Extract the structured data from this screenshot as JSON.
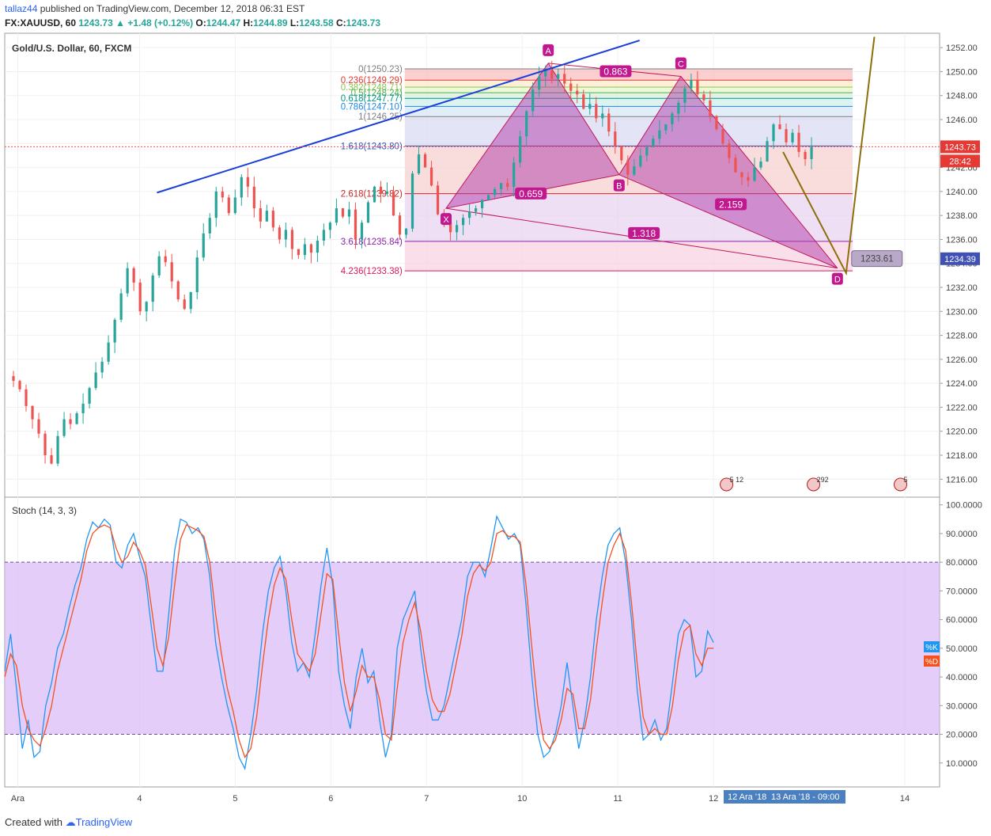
{
  "header": {
    "user": "tallaz44",
    "published": "published on TradingView.com, December 12, 2018 06:31 EST",
    "symbol": "FX:XAUUSD, 60",
    "last": "1243.73",
    "change": "+1.48 (+0.12%)",
    "o_label": "O:",
    "o": "1244.47",
    "h_label": "H:",
    "h": "1244.89",
    "l_label": "L:",
    "l": "1243.58",
    "c_label": "C:",
    "c": "1243.73"
  },
  "footer": {
    "created": "Created with",
    "brand": "TradingView"
  },
  "chart_data": [
    {
      "type": "candlestick",
      "title": "Gold/U.S. Dollar, 60, FXCM",
      "y_range": [
        1214.5,
        1253.2
      ],
      "y_ticks": [
        "1216.00",
        "1218.00",
        "1220.00",
        "1222.00",
        "1224.00",
        "1226.00",
        "1228.00",
        "1230.00",
        "1232.00",
        "1234.00",
        "1236.00",
        "1238.00",
        "1240.00",
        "1242.00",
        "1244.00",
        "1246.00",
        "1248.00",
        "1250.00",
        "1252.00"
      ],
      "x_ticks": [
        {
          "label": "Ara",
          "t": 3
        },
        {
          "label": "4",
          "t": 31
        },
        {
          "label": "5",
          "t": 53
        },
        {
          "label": "6",
          "t": 75
        },
        {
          "label": "7",
          "t": 97
        },
        {
          "label": "10",
          "t": 119
        },
        {
          "label": "11",
          "t": 141
        },
        {
          "label": "12",
          "t": 163
        },
        {
          "label": "14",
          "t": 207
        }
      ],
      "x_time_tags": [
        "12 Ara '18",
        "13 Ara '18 - 09:00"
      ],
      "price_tags": {
        "last": "1243.73",
        "countdown": "28:42",
        "target": "1234.39"
      },
      "closes": [
        1224.2,
        1223.5,
        1222.1,
        1221.0,
        1219.8,
        1218.0,
        1217.3,
        1219.6,
        1221.0,
        1220.6,
        1221.5,
        1222.3,
        1223.6,
        1224.9,
        1225.8,
        1227.4,
        1229.3,
        1231.5,
        1233.6,
        1232.4,
        1230.0,
        1230.8,
        1233.0,
        1234.6,
        1234.1,
        1232.5,
        1231.0,
        1230.2,
        1231.6,
        1234.5,
        1236.5,
        1237.8,
        1240.0,
        1239.5,
        1238.2,
        1239.5,
        1241.2,
        1240.4,
        1238.6,
        1237.5,
        1238.4,
        1237.0,
        1236.0,
        1236.8,
        1235.2,
        1234.7,
        1235.6,
        1234.9,
        1235.9,
        1236.8,
        1237.4,
        1238.6,
        1237.9,
        1238.5,
        1236.0,
        1237.4,
        1239.1,
        1240.4,
        1239.8,
        1240.0,
        1238.0,
        1236.4,
        1236.9,
        1241.5,
        1243.1,
        1242.0,
        1240.5,
        1238.1,
        1237.4,
        1236.6,
        1237.2,
        1237.8,
        1238.3,
        1238.6,
        1239.3,
        1239.7,
        1240.2,
        1240.7,
        1240.4,
        1242.4,
        1244.6,
        1246.7,
        1248.5,
        1249.6,
        1250.1,
        1249.4,
        1249.8,
        1249.0,
        1248.4,
        1248.1,
        1246.9,
        1247.3,
        1246.1,
        1246.5,
        1245.0,
        1243.8,
        1242.6,
        1241.4,
        1242.1,
        1243.0,
        1243.7,
        1244.4,
        1245.1,
        1245.6,
        1246.5,
        1247.4,
        1248.6,
        1249.3,
        1248.1,
        1247.6,
        1246.3,
        1245.2,
        1244.0,
        1242.8,
        1241.6,
        1241.2,
        1240.9,
        1242.0,
        1242.5,
        1244.2,
        1245.6,
        1245.2,
        1244.1,
        1244.9,
        1243.3,
        1242.7,
        1243.73
      ],
      "fib_levels": [
        {
          "label": "0(1250.23)",
          "value": 1250.23,
          "color": "#7e7e7e"
        },
        {
          "label": "0.236(1249.29)",
          "value": 1249.29,
          "color": "#e53935"
        },
        {
          "label": "0.382(1248.71)",
          "value": 1248.71,
          "color": "#8bc34a"
        },
        {
          "label": "0.5(1248.24)",
          "value": 1248.24,
          "color": "#4caf50"
        },
        {
          "label": "0.618(1247.77)",
          "value": 1247.77,
          "color": "#009688"
        },
        {
          "label": "0.786(1247.10)",
          "value": 1247.1,
          "color": "#1e88e5"
        },
        {
          "label": "1(1246.25)",
          "value": 1246.25,
          "color": "#7e7e7e"
        },
        {
          "label": "1.618(1243.80)",
          "value": 1243.8,
          "color": "#3f51b5"
        },
        {
          "label": "2.618(1239.82)",
          "value": 1239.82,
          "color": "#c62828"
        },
        {
          "label": "3.618(1235.84)",
          "value": 1235.84,
          "color": "#8e24aa"
        },
        {
          "label": "4.236(1233.38)",
          "value": 1233.38,
          "color": "#d81b60"
        }
      ],
      "harmonic_pattern": {
        "points": [
          {
            "label": "X",
            "t": 101.5,
            "price": 1238.6
          },
          {
            "label": "A",
            "t": 125,
            "price": 1250.7
          },
          {
            "label": "B",
            "t": 141.3,
            "price": 1241.4
          },
          {
            "label": "C",
            "t": 155.5,
            "price": 1249.6
          },
          {
            "label": "D",
            "t": 191.5,
            "price": 1233.61
          }
        ],
        "ratios": [
          {
            "label": "0.863",
            "t": 140.5,
            "price": 1250.0
          },
          {
            "label": "0.659",
            "t": 121,
            "price": 1239.8
          },
          {
            "label": "2.159",
            "t": 167,
            "price": 1238.9
          },
          {
            "label": "1.318",
            "t": 147,
            "price": 1236.5
          }
        ],
        "d_price_label": "1233.61"
      },
      "trendline": {
        "from": {
          "t": 35,
          "price": 1239.9
        },
        "to": {
          "t": 146,
          "price": 1252.6
        }
      },
      "forecast": {
        "path": [
          {
            "t": 179,
            "price": 1243.3
          },
          {
            "t": 193.5,
            "price": 1233.2
          },
          {
            "t": 200,
            "price": 1252.9
          }
        ]
      },
      "event_badges": [
        "5",
        "12",
        "292",
        "5"
      ]
    },
    {
      "type": "line",
      "title": "Stoch (14, 3, 3)",
      "y_range": [
        0,
        100
      ],
      "y_ticks": [
        "10.0000",
        "20.0000",
        "30.0000",
        "40.0000",
        "50.0000",
        "60.0000",
        "70.0000",
        "80.0000",
        "90.0000",
        "100.0000"
      ],
      "bands": [
        20,
        80
      ],
      "series": [
        {
          "name": "%K",
          "color": "#2196f3",
          "values": [
            42,
            55,
            36,
            15,
            25,
            12,
            14,
            30,
            38,
            50,
            55,
            64,
            72,
            78,
            88,
            94,
            92,
            95,
            93,
            80,
            78,
            86,
            90,
            82,
            75,
            58,
            42,
            42,
            62,
            84,
            95,
            94,
            90,
            92,
            88,
            75,
            52,
            40,
            30,
            22,
            12,
            8,
            20,
            35,
            55,
            70,
            78,
            82,
            70,
            52,
            42,
            45,
            40,
            55,
            72,
            85,
            72,
            42,
            30,
            22,
            40,
            50,
            38,
            42,
            25,
            12,
            20,
            50,
            60,
            65,
            70,
            50,
            35,
            25,
            25,
            30,
            40,
            50,
            60,
            75,
            80,
            80,
            75,
            85,
            96,
            92,
            88,
            90,
            86,
            65,
            40,
            20,
            12,
            14,
            20,
            30,
            45,
            30,
            15,
            25,
            40,
            60,
            75,
            86,
            90,
            92,
            80,
            60,
            35,
            18,
            20,
            25,
            18,
            22,
            38,
            55,
            60,
            58,
            40,
            42,
            56,
            52
          ]
        },
        {
          "name": "%D",
          "color": "#f4511e",
          "values": [
            40,
            48,
            44,
            30,
            22,
            18,
            16,
            22,
            30,
            42,
            50,
            58,
            66,
            74,
            84,
            90,
            92,
            93,
            92,
            85,
            80,
            82,
            87,
            84,
            79,
            65,
            50,
            44,
            54,
            72,
            88,
            93,
            92,
            91,
            89,
            80,
            62,
            48,
            36,
            28,
            18,
            12,
            15,
            26,
            44,
            60,
            72,
            78,
            74,
            60,
            48,
            45,
            42,
            48,
            62,
            76,
            74,
            55,
            38,
            28,
            35,
            44,
            40,
            40,
            32,
            20,
            18,
            36,
            52,
            60,
            66,
            56,
            42,
            32,
            28,
            28,
            34,
            44,
            54,
            68,
            76,
            79,
            77,
            80,
            90,
            91,
            89,
            89,
            87,
            72,
            50,
            30,
            18,
            15,
            18,
            25,
            36,
            34,
            22,
            22,
            32,
            50,
            66,
            80,
            86,
            90,
            84,
            66,
            44,
            26,
            20,
            22,
            20,
            20,
            30,
            46,
            56,
            58,
            48,
            44,
            50,
            50
          ]
        }
      ]
    }
  ]
}
